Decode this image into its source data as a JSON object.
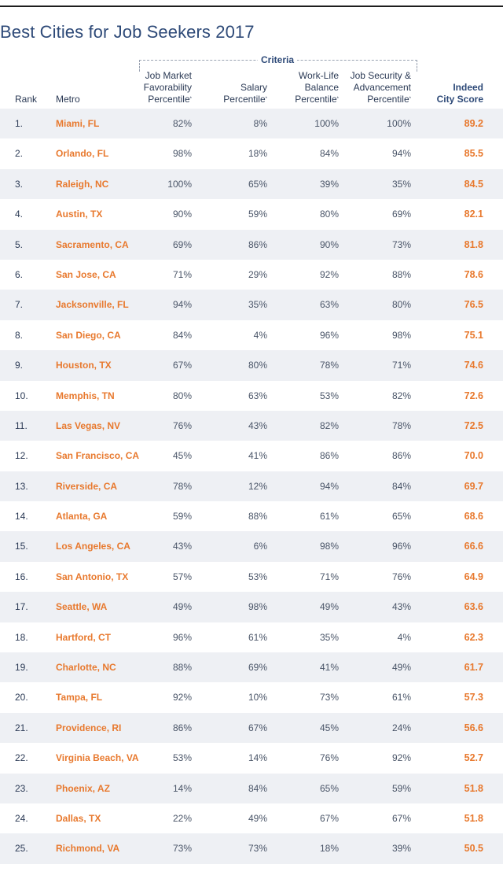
{
  "title": "Best Cities for Job Seekers 2017",
  "criteria_label": "Criteria",
  "headers": {
    "rank": "Rank",
    "metro": "Metro",
    "job_market": [
      "Job Market",
      "Favorability",
      "Percentile"
    ],
    "salary": [
      "Salary",
      "Percentile"
    ],
    "work_life": [
      "Work-Life",
      "Balance",
      "Percentile"
    ],
    "job_security": [
      "Job Security &",
      "Advancement",
      "Percentile"
    ],
    "score": [
      "Indeed",
      "City Score"
    ],
    "asterisk": "*"
  },
  "rows": [
    {
      "rank": "1.",
      "metro": "Miami, FL",
      "job": "82%",
      "salary": "8%",
      "wlb": "100%",
      "security": "100%",
      "score": "89.2"
    },
    {
      "rank": "2.",
      "metro": "Orlando, FL",
      "job": "98%",
      "salary": "18%",
      "wlb": "84%",
      "security": "94%",
      "score": "85.5"
    },
    {
      "rank": "3.",
      "metro": "Raleigh, NC",
      "job": "100%",
      "salary": "65%",
      "wlb": "39%",
      "security": "35%",
      "score": "84.5"
    },
    {
      "rank": "4.",
      "metro": "Austin, TX",
      "job": "90%",
      "salary": "59%",
      "wlb": "80%",
      "security": "69%",
      "score": "82.1"
    },
    {
      "rank": "5.",
      "metro": "Sacramento, CA",
      "job": "69%",
      "salary": "86%",
      "wlb": "90%",
      "security": "73%",
      "score": "81.8"
    },
    {
      "rank": "6.",
      "metro": "San Jose, CA",
      "job": "71%",
      "salary": "29%",
      "wlb": "92%",
      "security": "88%",
      "score": "78.6"
    },
    {
      "rank": "7.",
      "metro": "Jacksonville, FL",
      "job": "94%",
      "salary": "35%",
      "wlb": "63%",
      "security": "80%",
      "score": "76.5"
    },
    {
      "rank": "8.",
      "metro": "San Diego, CA",
      "job": "84%",
      "salary": "4%",
      "wlb": "96%",
      "security": "98%",
      "score": "75.1"
    },
    {
      "rank": "9.",
      "metro": "Houston, TX",
      "job": "67%",
      "salary": "80%",
      "wlb": "78%",
      "security": "71%",
      "score": "74.6"
    },
    {
      "rank": "10.",
      "metro": "Memphis, TN",
      "job": "80%",
      "salary": "63%",
      "wlb": "53%",
      "security": "82%",
      "score": "72.6"
    },
    {
      "rank": "11.",
      "metro": "Las Vegas, NV",
      "job": "76%",
      "salary": "43%",
      "wlb": "82%",
      "security": "78%",
      "score": "72.5"
    },
    {
      "rank": "12.",
      "metro": "San Francisco, CA",
      "job": "45%",
      "salary": "41%",
      "wlb": "86%",
      "security": "86%",
      "score": "70.0"
    },
    {
      "rank": "13.",
      "metro": "Riverside, CA",
      "job": "78%",
      "salary": "12%",
      "wlb": "94%",
      "security": "84%",
      "score": "69.7"
    },
    {
      "rank": "14.",
      "metro": "Atlanta, GA",
      "job": "59%",
      "salary": "88%",
      "wlb": "61%",
      "security": "65%",
      "score": "68.6"
    },
    {
      "rank": "15.",
      "metro": "Los Angeles, CA",
      "job": "43%",
      "salary": "6%",
      "wlb": "98%",
      "security": "96%",
      "score": "66.6"
    },
    {
      "rank": "16.",
      "metro": "San Antonio, TX",
      "job": "57%",
      "salary": "53%",
      "wlb": "71%",
      "security": "76%",
      "score": "64.9"
    },
    {
      "rank": "17.",
      "metro": "Seattle, WA",
      "job": "49%",
      "salary": "98%",
      "wlb": "49%",
      "security": "43%",
      "score": "63.6"
    },
    {
      "rank": "18.",
      "metro": "Hartford, CT",
      "job": "96%",
      "salary": "61%",
      "wlb": "35%",
      "security": "4%",
      "score": "62.3"
    },
    {
      "rank": "19.",
      "metro": "Charlotte, NC",
      "job": "88%",
      "salary": "69%",
      "wlb": "41%",
      "security": "49%",
      "score": "61.7"
    },
    {
      "rank": "20.",
      "metro": "Tampa, FL",
      "job": "92%",
      "salary": "10%",
      "wlb": "73%",
      "security": "61%",
      "score": "57.3"
    },
    {
      "rank": "21.",
      "metro": "Providence, RI",
      "job": "86%",
      "salary": "67%",
      "wlb": "45%",
      "security": "24%",
      "score": "56.6"
    },
    {
      "rank": "22.",
      "metro": "Virginia Beach, VA",
      "job": "53%",
      "salary": "14%",
      "wlb": "76%",
      "security": "92%",
      "score": "52.7"
    },
    {
      "rank": "23.",
      "metro": "Phoenix, AZ",
      "job": "14%",
      "salary": "84%",
      "wlb": "65%",
      "security": "59%",
      "score": "51.8"
    },
    {
      "rank": "24.",
      "metro": "Dallas, TX",
      "job": "22%",
      "salary": "49%",
      "wlb": "67%",
      "security": "67%",
      "score": "51.8"
    },
    {
      "rank": "25.",
      "metro": "Richmond, VA",
      "job": "73%",
      "salary": "73%",
      "wlb": "18%",
      "security": "39%",
      "score": "50.5"
    }
  ],
  "colors": {
    "title": "#2e4a78",
    "metro": "#e8792e",
    "score": "#e8792e",
    "row_shade": "#eef0f4"
  }
}
